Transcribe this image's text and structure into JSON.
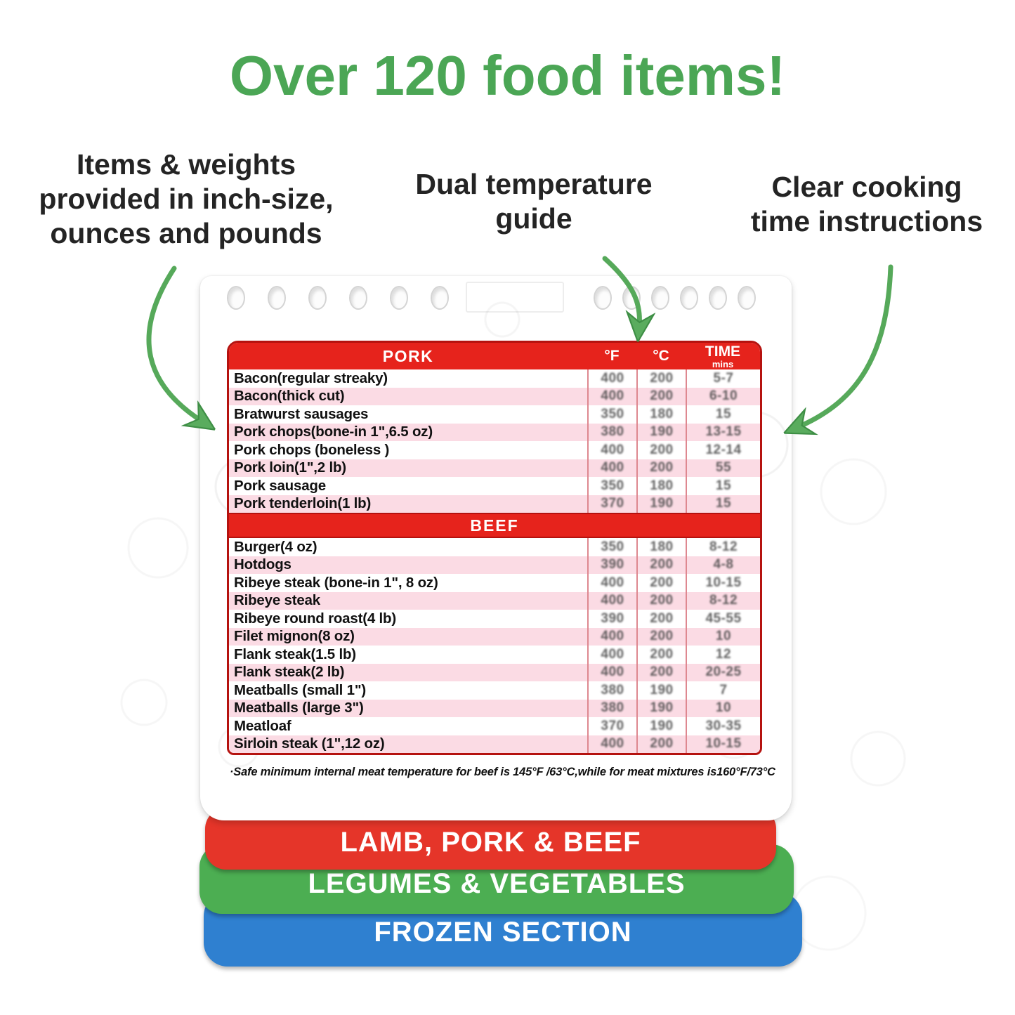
{
  "title": "Over 120 food items!",
  "annotations": {
    "left": "Items & weights\nprovided in inch-size,\nounces and pounds",
    "center": "Dual temperature\nguide",
    "right": "Clear cooking\ntime instructions"
  },
  "card": {
    "col_headers": {
      "f": "°F",
      "c": "°C",
      "time": "TIME",
      "time_sub": "mins"
    },
    "sections": [
      {
        "name": "PORK",
        "rows": [
          {
            "item": "Bacon(regular streaky)",
            "f": "400",
            "c": "200",
            "time": "5-7"
          },
          {
            "item": "Bacon(thick cut)",
            "f": "400",
            "c": "200",
            "time": "6-10"
          },
          {
            "item": "Bratwurst sausages",
            "f": "350",
            "c": "180",
            "time": "15"
          },
          {
            "item": "Pork chops(bone-in 1\",6.5 oz)",
            "f": "380",
            "c": "190",
            "time": "13-15"
          },
          {
            "item": "Pork chops    (boneless )",
            "f": "400",
            "c": "200",
            "time": "12-14"
          },
          {
            "item": "Pork loin(1\",2 lb)",
            "f": "400",
            "c": "200",
            "time": "55"
          },
          {
            "item": "Pork sausage",
            "f": "350",
            "c": "180",
            "time": "15"
          },
          {
            "item": "Pork tenderloin(1 lb)",
            "f": "370",
            "c": "190",
            "time": "15"
          }
        ]
      },
      {
        "name": "BEEF",
        "rows": [
          {
            "item": "Burger(4 oz)",
            "f": "350",
            "c": "180",
            "time": "8-12"
          },
          {
            "item": "Hotdogs",
            "f": "390",
            "c": "200",
            "time": "4-8"
          },
          {
            "item": "Ribeye steak (bone-in 1\", 8 oz)",
            "f": "400",
            "c": "200",
            "time": "10-15"
          },
          {
            "item": "Ribeye steak",
            "f": "400",
            "c": "200",
            "time": "8-12"
          },
          {
            "item": "Ribeye round roast(4 lb)",
            "f": "390",
            "c": "200",
            "time": "45-55"
          },
          {
            "item": "Filet mignon(8 oz)",
            "f": "400",
            "c": "200",
            "time": "10"
          },
          {
            "item": "Flank steak(1.5 lb)",
            "f": "400",
            "c": "200",
            "time": "12"
          },
          {
            "item": "Flank steak(2 lb)",
            "f": "400",
            "c": "200",
            "time": "20-25"
          },
          {
            "item": "Meatballs (small 1\")",
            "f": "380",
            "c": "190",
            "time": "7"
          },
          {
            "item": "Meatballs (large 3\")",
            "f": "380",
            "c": "190",
            "time": "10"
          },
          {
            "item": "Meatloaf",
            "f": "370",
            "c": "190",
            "time": "30-35"
          },
          {
            "item": "Sirloin steak (1\",12 oz)",
            "f": "400",
            "c": "200",
            "time": "10-15"
          }
        ]
      }
    ],
    "footnote": "·Safe minimum internal meat temperature for beef is 145°F /63°C,while for meat mixtures is160°F/73°C"
  },
  "tabs": [
    {
      "label": "LAMB, PORK & BEEF",
      "color": "#e53529"
    },
    {
      "label": "LEGUMES & VEGETABLES",
      "color": "#4cae52"
    },
    {
      "label": "FROZEN SECTION",
      "color": "#2f80d0"
    }
  ],
  "colors": {
    "title_green": "#4ba655",
    "arrow_green": "#56a95a",
    "table_header_red": "#e6231c",
    "table_border_red": "#b5120f",
    "row_pink": "#fbdbe4"
  }
}
